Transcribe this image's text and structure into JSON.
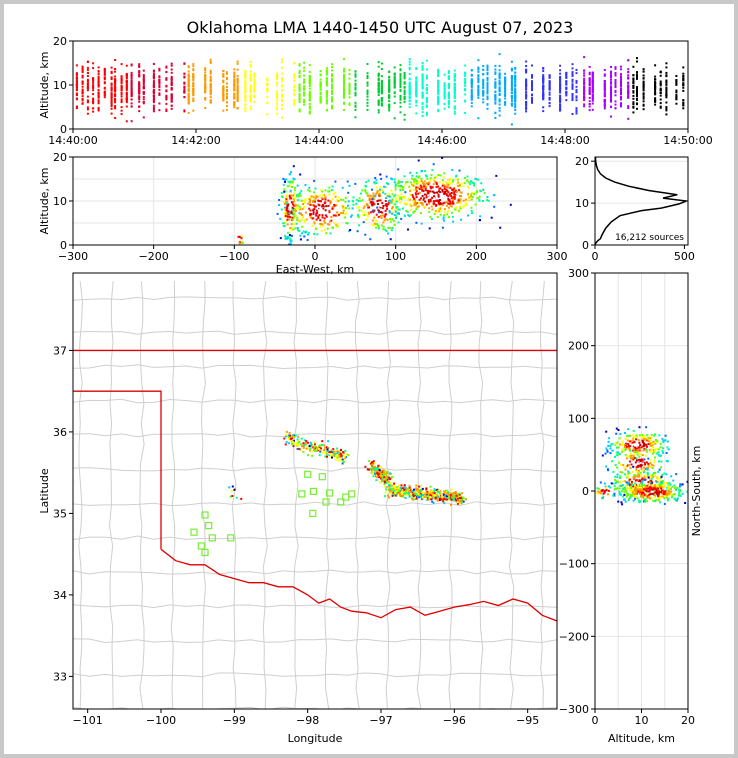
{
  "title": "Oklahoma LMA 1440-1450 UTC August 07, 2023",
  "chart_data": [
    {
      "panel": "time-height",
      "type": "heatmap",
      "ylabel": "Altitude, km",
      "xlim": [
        "14:40:00",
        "14:50:00"
      ],
      "ylim": [
        0,
        20
      ],
      "xticks": [
        "14:40:00",
        "14:42:00",
        "14:44:00",
        "14:46:00",
        "14:48:00",
        "14:50:00"
      ],
      "yticks": [
        "0",
        "10",
        "20"
      ]
    },
    {
      "panel": "east-west-altitude",
      "type": "heatmap",
      "xlabel": "East-West, km",
      "ylabel": "Altitude, km",
      "xlim": [
        -300,
        300
      ],
      "ylim": [
        0,
        20
      ],
      "xticks": [
        "−300",
        "−200",
        "−100",
        "0",
        "100",
        "200",
        "300"
      ],
      "yticks": [
        "0",
        "10",
        "20"
      ],
      "clusters": [
        {
          "x": -32,
          "alt": 8.5
        },
        {
          "x": 8,
          "alt": 8.0
        },
        {
          "x": 78,
          "alt": 9.0
        },
        {
          "x": 150,
          "alt": 11.5
        },
        {
          "x": -95,
          "alt": 1.5
        }
      ]
    },
    {
      "panel": "altitude-histogram",
      "type": "line",
      "annotation": "16,212 sources",
      "xlim": [
        0,
        520
      ],
      "ylim": [
        0,
        21
      ],
      "xticks": [
        "0",
        "500"
      ],
      "yticks": [
        "0",
        "10",
        "20"
      ],
      "x": [
        0,
        5,
        15,
        30,
        40,
        60,
        90,
        140,
        260,
        370,
        470,
        510,
        380,
        460,
        300,
        190,
        110,
        60,
        30,
        15,
        8,
        4,
        2
      ],
      "y": [
        0,
        0.5,
        1.0,
        1.5,
        2.5,
        4.0,
        5.5,
        7.0,
        8.2,
        8.8,
        9.8,
        10.5,
        11.2,
        12.0,
        13.0,
        14.0,
        15.0,
        16.0,
        17.0,
        18.0,
        19.0,
        20.0,
        21.0
      ]
    },
    {
      "panel": "plan-view-map",
      "type": "scatter",
      "xlabel": "Longitude",
      "ylabel": "Latitude",
      "xlim": [
        -101.2,
        -94.6
      ],
      "ylim": [
        32.6,
        37.95
      ],
      "xticks": [
        "−101",
        "−100",
        "−99",
        "−98",
        "−97",
        "−96",
        "−95"
      ],
      "yticks": [
        "33",
        "34",
        "35",
        "36",
        "37"
      ],
      "stations": [
        {
          "lon": -99.4,
          "lat": 34.98
        },
        {
          "lon": -99.35,
          "lat": 34.85
        },
        {
          "lon": -99.55,
          "lat": 34.77
        },
        {
          "lon": -99.3,
          "lat": 34.7
        },
        {
          "lon": -99.45,
          "lat": 34.6
        },
        {
          "lon": -99.4,
          "lat": 34.52
        },
        {
          "lon": -99.05,
          "lat": 34.7
        },
        {
          "lon": -98.0,
          "lat": 35.48
        },
        {
          "lon": -97.8,
          "lat": 35.45
        },
        {
          "lon": -98.08,
          "lat": 35.24
        },
        {
          "lon": -97.92,
          "lat": 35.27
        },
        {
          "lon": -97.7,
          "lat": 35.25
        },
        {
          "lon": -97.75,
          "lat": 35.14
        },
        {
          "lon": -97.55,
          "lat": 35.14
        },
        {
          "lon": -97.48,
          "lat": 35.2
        },
        {
          "lon": -97.4,
          "lat": 35.24
        },
        {
          "lon": -97.93,
          "lat": 35.0
        }
      ]
    },
    {
      "panel": "altitude-north-south",
      "type": "heatmap",
      "xlabel": "Altitude, km",
      "ylabel": "North-South, km",
      "xlim": [
        0,
        20
      ],
      "ylim": [
        -300,
        300
      ],
      "xticks": [
        "0",
        "10",
        "20"
      ],
      "yticks": [
        "−300",
        "−200",
        "−100",
        "0",
        "100",
        "200",
        "300"
      ]
    }
  ]
}
